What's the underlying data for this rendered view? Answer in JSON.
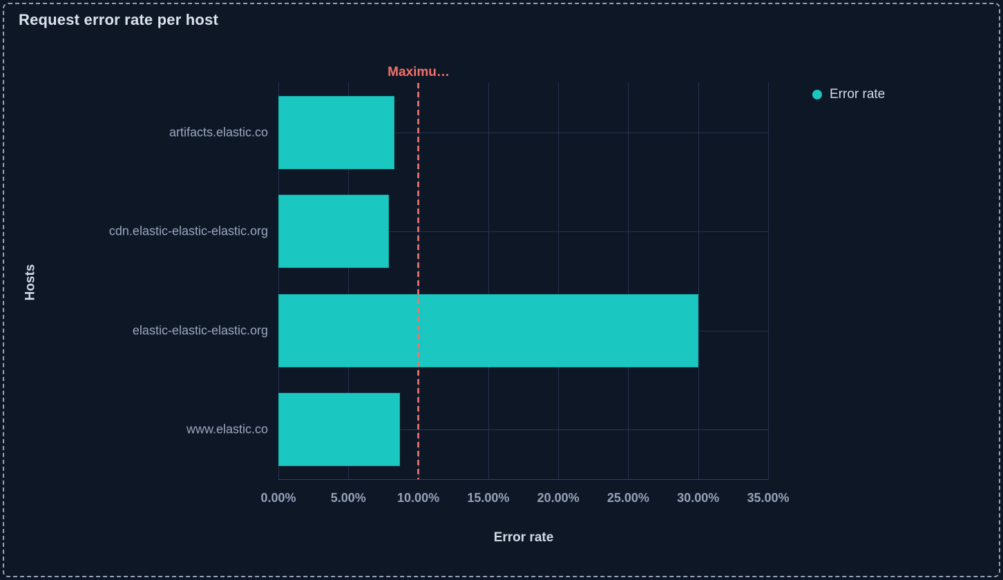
{
  "panel": {
    "title": "Request error rate per host"
  },
  "legend": {
    "items": [
      {
        "label": "Error rate",
        "color": "#1ac8c1"
      }
    ]
  },
  "chart_data": {
    "type": "bar",
    "orientation": "horizontal",
    "title": "Request error rate per host",
    "categories": [
      "artifacts.elastic.co",
      "cdn.elastic-elastic-elastic.org",
      "elastic-elastic-elastic.org",
      "www.elastic.co"
    ],
    "series": [
      {
        "name": "Error rate",
        "values": [
          8.3,
          7.9,
          30.0,
          8.7
        ]
      }
    ],
    "xlabel": "Error rate",
    "ylabel": "Hosts",
    "xlim": [
      0,
      35
    ],
    "x_ticks": [
      "0.00%",
      "5.00%",
      "10.00%",
      "15.00%",
      "20.00%",
      "25.00%",
      "30.00%",
      "35.00%"
    ],
    "x_tick_values": [
      0,
      5,
      10,
      15,
      20,
      25,
      30,
      35
    ],
    "grid": true,
    "legend_position": "top-right",
    "threshold": {
      "label": "Maximu…",
      "value": 10,
      "color": "#f4716b"
    }
  },
  "colors": {
    "background": "#0e1726",
    "panel_border": "#93a3bc",
    "bar": "#1ac8c1",
    "threshold": "#f4716b",
    "grid": "#263350",
    "axis_line": "#34435f",
    "tick_text": "#95a3b9",
    "axis_title_text": "#d3dbe7",
    "title_text": "#dce3ee",
    "legend_text": "#d5dde9"
  }
}
